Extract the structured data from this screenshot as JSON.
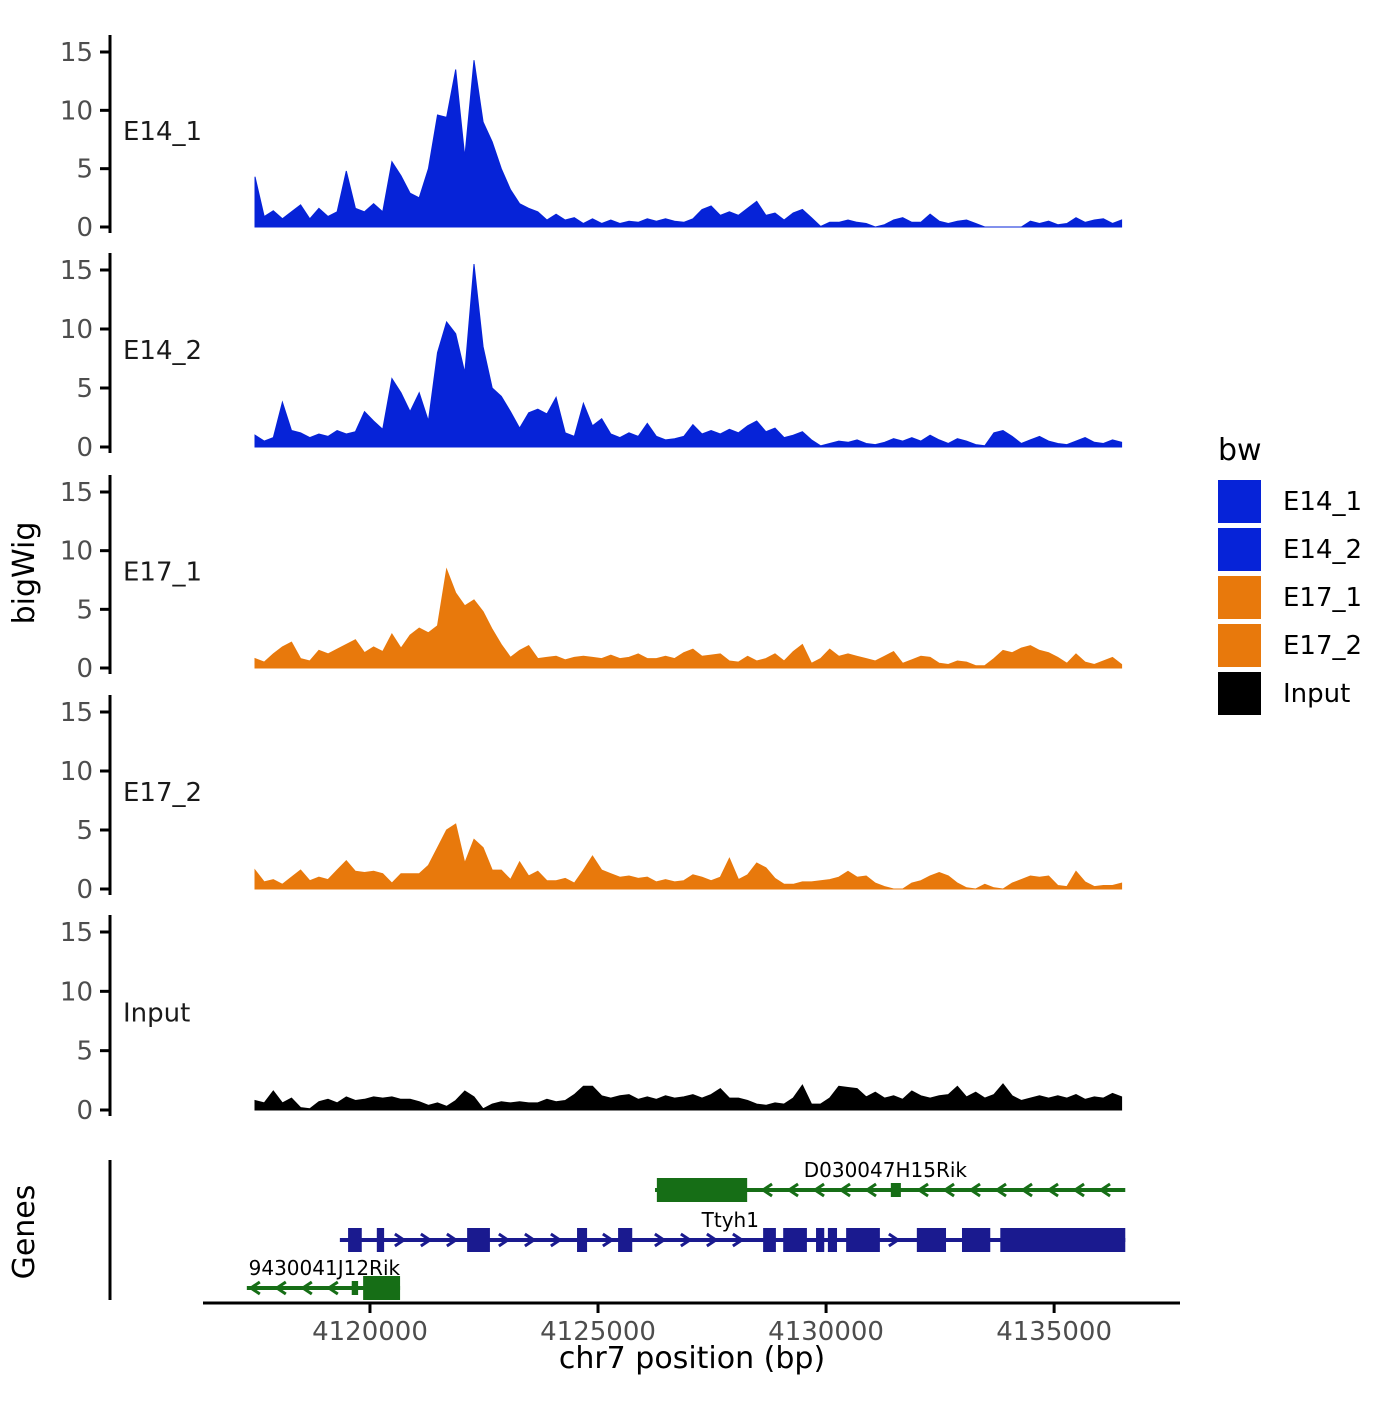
{
  "figure": {
    "ylab_left": "bigWig",
    "genes_label": "Genes",
    "xlab": "chr7 position (bp)",
    "xlim": [
      4114300,
      4137760
    ],
    "x_ticks": [
      4120000,
      4125000,
      4130000,
      4135000
    ],
    "x_tick_labels": [
      "4120000",
      "4125000",
      "4130000",
      "4135000"
    ],
    "y_ticks": [
      0,
      5,
      10,
      15
    ],
    "ylim": [
      0,
      16.5
    ]
  },
  "legend": {
    "title": "bw",
    "entries": [
      {
        "label": "E14_1",
        "color": "#0623D8"
      },
      {
        "label": "E14_2",
        "color": "#0623D8"
      },
      {
        "label": "E17_1",
        "color": "#E8790C"
      },
      {
        "label": "E17_2",
        "color": "#E8790C"
      },
      {
        "label": "Input",
        "color": "#000000"
      }
    ]
  },
  "chart_data": {
    "type": "area",
    "title": "",
    "xlabel": "chr7 position (bp)",
    "ylabel": "bigWig",
    "x_start": 4117480,
    "x_step": 200,
    "series": [
      {
        "name": "E14_1",
        "color": "#0623D8",
        "values": [
          4.3,
          0.9,
          1.4,
          0.7,
          1.3,
          1.9,
          0.7,
          1.6,
          0.9,
          1.3,
          4.8,
          1.6,
          1.3,
          2.0,
          1.3,
          5.6,
          4.4,
          2.9,
          2.5,
          5.0,
          9.6,
          9.4,
          13.5,
          6.0,
          14.3,
          9.0,
          7.3,
          5.0,
          3.2,
          2.0,
          1.6,
          1.3,
          0.6,
          1.1,
          0.6,
          0.8,
          0.3,
          0.7,
          0.3,
          0.6,
          0.3,
          0.5,
          0.4,
          0.7,
          0.5,
          0.7,
          0.5,
          0.4,
          0.7,
          1.5,
          1.8,
          1.0,
          1.3,
          1.0,
          1.6,
          2.2,
          1.0,
          1.2,
          0.6,
          1.2,
          1.5,
          0.8,
          0.05,
          0.4,
          0.4,
          0.6,
          0.4,
          0.3,
          0,
          0.2,
          0.6,
          0.8,
          0.4,
          0.4,
          1.1,
          0.5,
          0.3,
          0.5,
          0.6,
          0.3,
          0,
          0,
          0,
          0,
          0,
          0.5,
          0.3,
          0.5,
          0.2,
          0.3,
          0.8,
          0.4,
          0.6,
          0.7,
          0.3,
          0.6
        ]
      },
      {
        "name": "E14_2",
        "color": "#0623D8",
        "values": [
          1.0,
          0.5,
          0.8,
          3.8,
          1.4,
          1.2,
          0.8,
          1.1,
          0.9,
          1.4,
          1.1,
          1.3,
          3.0,
          2.2,
          1.5,
          5.8,
          4.6,
          3.0,
          4.6,
          2.2,
          8.0,
          10.6,
          9.6,
          6.3,
          15.5,
          8.5,
          5.0,
          4.3,
          3.0,
          1.6,
          2.9,
          3.2,
          2.8,
          4.2,
          1.2,
          0.9,
          3.7,
          1.8,
          2.4,
          1.1,
          0.8,
          1.2,
          0.9,
          2.0,
          0.9,
          0.6,
          0.7,
          0.9,
          1.9,
          1.1,
          1.4,
          1.1,
          1.5,
          1.2,
          1.8,
          2.2,
          1.3,
          1.6,
          0.8,
          1.0,
          1.3,
          0.6,
          0.1,
          0.3,
          0.5,
          0.4,
          0.6,
          0.3,
          0.2,
          0.4,
          0.7,
          0.5,
          0.8,
          0.5,
          1.0,
          0.6,
          0.3,
          0.7,
          0.5,
          0.2,
          0.1,
          1.2,
          1.4,
          0.9,
          0.3,
          0.6,
          0.9,
          0.5,
          0.3,
          0.2,
          0.5,
          0.8,
          0.4,
          0.3,
          0.6,
          0.4
        ]
      },
      {
        "name": "E17_1",
        "color": "#E8790C",
        "values": [
          0.8,
          0.5,
          1.2,
          1.8,
          2.2,
          0.8,
          0.6,
          1.5,
          1.2,
          1.6,
          2.0,
          2.4,
          1.3,
          1.8,
          1.4,
          2.9,
          1.7,
          2.8,
          3.4,
          3.0,
          3.6,
          8.4,
          6.4,
          5.3,
          5.8,
          4.8,
          3.3,
          2.0,
          0.9,
          1.5,
          1.9,
          0.8,
          0.9,
          1.0,
          0.7,
          0.9,
          1.0,
          0.9,
          0.8,
          1.1,
          0.8,
          0.9,
          1.2,
          0.8,
          0.8,
          1.0,
          0.8,
          1.3,
          1.6,
          1.0,
          1.1,
          1.2,
          0.6,
          0.5,
          1.0,
          0.6,
          0.8,
          1.2,
          0.6,
          1.4,
          2.0,
          0.4,
          0.8,
          1.6,
          1.0,
          1.2,
          1.0,
          0.8,
          0.6,
          1.0,
          1.4,
          0.4,
          0.7,
          1.0,
          0.9,
          0.4,
          0.3,
          0.6,
          0.5,
          0.2,
          0.2,
          0.8,
          1.5,
          1.3,
          1.7,
          1.9,
          1.5,
          1.3,
          0.9,
          0.4,
          1.2,
          0.5,
          0.3,
          0.6,
          0.9,
          0.3
        ]
      },
      {
        "name": "E17_2",
        "color": "#E8790C",
        "values": [
          1.6,
          0.6,
          0.8,
          0.4,
          1.0,
          1.6,
          0.7,
          1.0,
          0.8,
          1.6,
          2.4,
          1.5,
          1.4,
          1.5,
          1.3,
          0.5,
          1.3,
          1.3,
          1.3,
          2.0,
          3.5,
          5.0,
          5.5,
          2.2,
          4.2,
          3.5,
          1.6,
          1.6,
          0.8,
          2.3,
          1.1,
          1.5,
          0.7,
          0.7,
          0.9,
          0.5,
          1.6,
          2.8,
          1.6,
          1.3,
          1.0,
          1.1,
          0.9,
          1.0,
          0.6,
          0.8,
          0.6,
          0.7,
          1.2,
          1.0,
          0.7,
          1.0,
          2.6,
          0.8,
          1.2,
          2.2,
          1.8,
          0.9,
          0.4,
          0.4,
          0.6,
          0.6,
          0.7,
          0.8,
          1.0,
          1.5,
          1.0,
          1.1,
          0.5,
          0.2,
          0,
          0,
          0.5,
          0.7,
          1.1,
          1.4,
          1.1,
          0.5,
          0.1,
          0,
          0.4,
          0.1,
          0,
          0.5,
          0.8,
          1.1,
          1.0,
          1.1,
          0.3,
          0.2,
          1.5,
          0.6,
          0.2,
          0.3,
          0.3,
          0.5
        ]
      },
      {
        "name": "Input",
        "color": "#000000",
        "values": [
          0.8,
          0.6,
          1.6,
          0.6,
          1.0,
          0.2,
          0.1,
          0.7,
          0.9,
          0.6,
          1.1,
          0.8,
          0.9,
          1.1,
          1.0,
          1.1,
          0.9,
          0.9,
          0.7,
          0.4,
          0.6,
          0.3,
          0.8,
          1.6,
          1.1,
          0.1,
          0.5,
          0.7,
          0.6,
          0.7,
          0.6,
          0.6,
          0.9,
          0.7,
          0.8,
          1.3,
          2.0,
          2.0,
          1.2,
          1.0,
          1.2,
          1.3,
          0.9,
          1.1,
          0.9,
          1.2,
          1.0,
          1.1,
          1.3,
          1.0,
          1.3,
          1.8,
          1.0,
          1.0,
          0.8,
          0.5,
          0.4,
          0.6,
          0.5,
          1.0,
          2.1,
          0.5,
          0.5,
          1.0,
          2.0,
          1.9,
          1.8,
          1.1,
          1.5,
          1.0,
          1.2,
          0.9,
          1.6,
          1.2,
          1.0,
          1.2,
          1.3,
          2.0,
          1.1,
          1.5,
          1.0,
          1.3,
          2.2,
          1.2,
          0.8,
          1.0,
          1.2,
          1.0,
          1.2,
          1.0,
          1.3,
          0.9,
          1.1,
          1.0,
          1.4,
          1.1
        ]
      }
    ],
    "genes": [
      {
        "name": "D030047H15Rik",
        "strand": "-",
        "row": 0,
        "color": "#166E16",
        "start": 4126250,
        "end": 4136560,
        "boxes": [
          [
            4126290,
            4128270,
            "b"
          ],
          [
            4131420,
            4131640,
            "s"
          ]
        ],
        "label_bp": 4131300
      },
      {
        "name": "Ttyh1",
        "strand": "+",
        "row": 1,
        "color": "#1A1A8F",
        "start": 4119340,
        "end": 4136560,
        "boxes": [
          [
            4119520,
            4119820,
            "b"
          ],
          [
            4120150,
            4120310,
            "b"
          ],
          [
            4122130,
            4122630,
            "b"
          ],
          [
            4124540,
            4124760,
            "b"
          ],
          [
            4125440,
            4125750,
            "b"
          ],
          [
            4128620,
            4128900,
            "b"
          ],
          [
            4129060,
            4129580,
            "b"
          ],
          [
            4129780,
            4129960,
            "b"
          ],
          [
            4130040,
            4130240,
            "b"
          ],
          [
            4130440,
            4131180,
            "b"
          ],
          [
            4131990,
            4132630,
            "b"
          ],
          [
            4132980,
            4133600,
            "b"
          ],
          [
            4133820,
            4136560,
            "b"
          ]
        ],
        "label_bp": 4127900
      },
      {
        "name": "9430041J12Rik",
        "strand": "-",
        "row": 2,
        "color": "#166E16",
        "start": 4117300,
        "end": 4120660,
        "boxes": [
          [
            4119600,
            4119740,
            "s"
          ],
          [
            4119850,
            4120660,
            "b"
          ]
        ],
        "label_bp": 4119000
      }
    ]
  }
}
